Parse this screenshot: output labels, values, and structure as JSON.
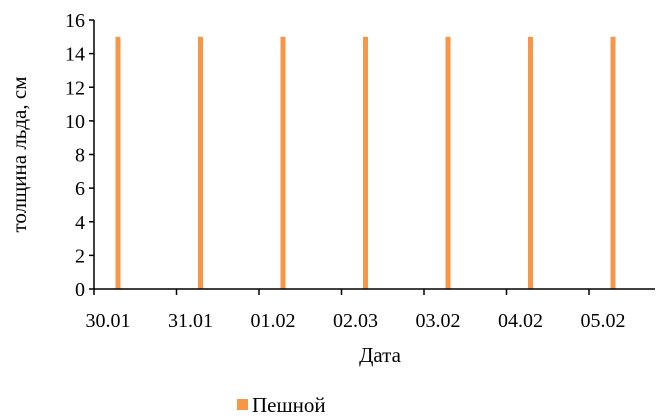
{
  "chart_data": {
    "type": "bar",
    "title": "",
    "xlabel": "Дата",
    "ylabel": "толщина льда, см",
    "categories": [
      "30.01",
      "31.01",
      "01.02",
      "02.03",
      "03.02",
      "04.02",
      "05.02"
    ],
    "series": [
      {
        "name": "Пешной",
        "values": [
          15,
          15,
          15,
          15,
          15,
          15,
          15
        ],
        "color": "#F79646"
      }
    ],
    "ylim": [
      0,
      16
    ],
    "yticks": [
      "0",
      "2",
      "4",
      "6",
      "8",
      "10",
      "12",
      "14",
      "16"
    ],
    "grid": false,
    "legend_position": "bottom"
  }
}
